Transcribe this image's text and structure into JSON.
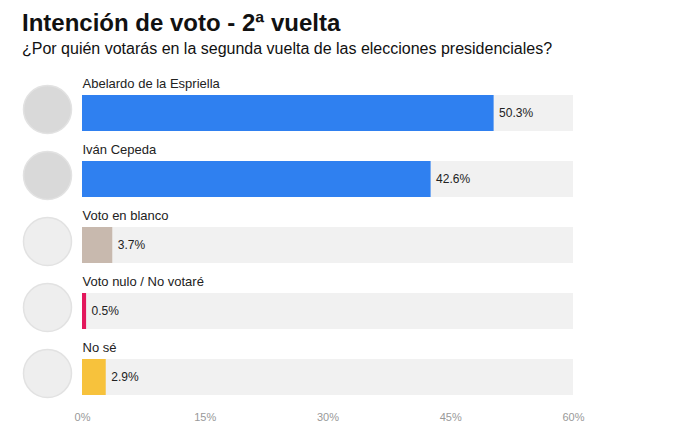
{
  "chart_data": {
    "type": "bar",
    "orientation": "horizontal",
    "title": "Intención de voto - 2ª vuelta",
    "subtitle": "¿Por quién votarás en la segunda vuelta de las elecciones presidenciales?",
    "categories": [
      "Abelardo de la Espriella",
      "Iván Cepeda",
      "Voto en blanco",
      "Voto nulo / No votaré",
      "No sé"
    ],
    "values": [
      50.3,
      42.6,
      3.7,
      0.5,
      2.9
    ],
    "value_labels": [
      "50.3%",
      "42.6%",
      "3.7%",
      "0.5%",
      "2.9%"
    ],
    "colors": [
      "#2f80f0",
      "#2f80f0",
      "#c8b9ae",
      "#e3185c",
      "#f7c23c"
    ],
    "xlim": [
      0,
      60
    ],
    "xticks": [
      {
        "value": 0,
        "label": "0%"
      },
      {
        "value": 15,
        "label": "15%"
      },
      {
        "value": 30,
        "label": "30%"
      },
      {
        "value": 45,
        "label": "45%"
      },
      {
        "value": 60,
        "label": "60%"
      }
    ],
    "grid": false,
    "data_labels": true
  }
}
